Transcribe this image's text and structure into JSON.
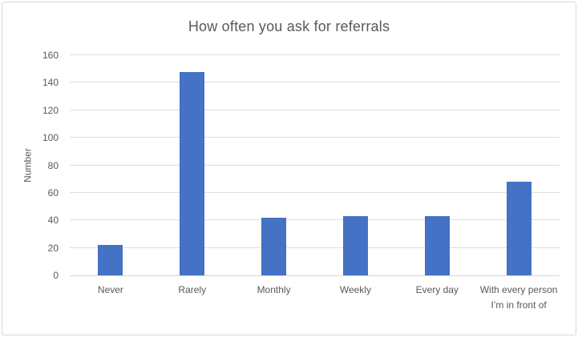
{
  "chart": {
    "title": "How often you ask for referrals",
    "y_axis_title": "Number"
  },
  "chart_data": {
    "type": "bar",
    "title": "How often you ask for referrals",
    "categories": [
      "Never",
      "Rarely",
      "Monthly",
      "Weekly",
      "Every day",
      "With every person I’m in front of"
    ],
    "values": [
      22,
      148,
      42,
      43,
      43,
      68
    ],
    "xlabel": "",
    "ylabel": "Number",
    "ylim": [
      0,
      160
    ],
    "ytick_step": 20,
    "yticks": [
      0,
      20,
      40,
      60,
      80,
      100,
      120,
      140,
      160
    ],
    "grid": true,
    "legend": false,
    "colors": {
      "bar": "#4472c4",
      "gridline": "#dedede",
      "axis_line": "#d6d6d6",
      "text": "#595959",
      "chart_border": "#d8d8d8",
      "background": "#ffffff"
    }
  }
}
